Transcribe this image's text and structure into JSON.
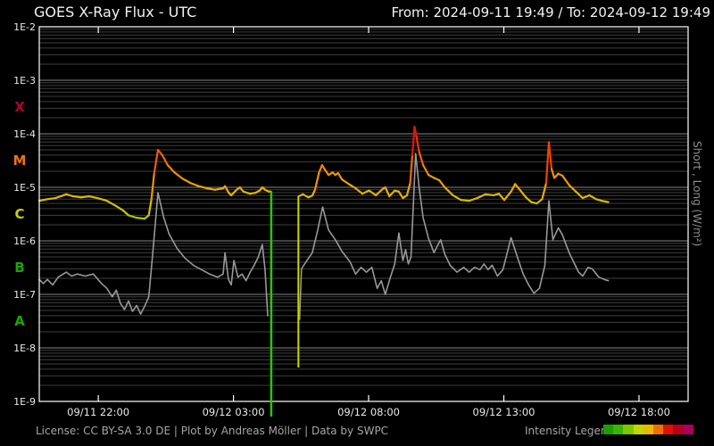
{
  "header": {
    "title": "GOES X-Ray Flux - UTC",
    "range_label": "From: 2024-09-11 19:49  /  To: 2024-09-12 19:49"
  },
  "footer": {
    "license": "License: CC BY-SA 3.0 DE | Plot by Andreas Möller | Data by SWPC",
    "legend_label": "Intensity Legend",
    "legend_colors": [
      "#1c9e00",
      "#39b500",
      "#7cc900",
      "#c4d600",
      "#edb800",
      "#ee7000",
      "#e01000",
      "#b4001e",
      "#a8005c"
    ]
  },
  "chart_data": {
    "type": "line",
    "title": "GOES X-Ray Flux - UTC",
    "time_range": {
      "from": "2024-09-11 19:49",
      "to": "2024-09-12 19:49",
      "timezone": "UTC"
    },
    "x_axis": {
      "unit": "hours after 2024-09-11 19:49 UTC",
      "range": [
        0,
        24
      ],
      "ticks": [
        {
          "label": "09/11 22:00",
          "t": 2.183
        },
        {
          "label": "09/12 03:00",
          "t": 7.183
        },
        {
          "label": "09/12 08:00",
          "t": 12.183
        },
        {
          "label": "09/12 13:00",
          "t": 17.183
        },
        {
          "label": "09/12 18:00",
          "t": 22.183
        }
      ]
    },
    "y_axis": {
      "scale": "log",
      "range": [
        1e-09,
        0.01
      ],
      "unit": "W/m²",
      "axis_label": "Short ,  Long (W/m²)",
      "ticks": [
        {
          "label": "1E-2",
          "exp": -2
        },
        {
          "label": "1E-3",
          "exp": -3
        },
        {
          "label": "1E-4",
          "exp": -4
        },
        {
          "label": "1E-5",
          "exp": -5
        },
        {
          "label": "1E-6",
          "exp": -6
        },
        {
          "label": "1E-7",
          "exp": -7
        },
        {
          "label": "1E-8",
          "exp": -8
        },
        {
          "label": "1E-9",
          "exp": -9
        }
      ],
      "flare_classes": [
        {
          "label": "X",
          "mid_exp": -3.5,
          "color": "#b2002d"
        },
        {
          "label": "M",
          "mid_exp": -4.5,
          "color": "#ee7500"
        },
        {
          "label": "C",
          "mid_exp": -5.5,
          "color": "#c9cf00"
        },
        {
          "label": "B",
          "mid_exp": -6.5,
          "color": "#1fa300"
        },
        {
          "label": "A",
          "mid_exp": -7.5,
          "color": "#1fa300"
        }
      ],
      "grid": {
        "major": true,
        "minor_log": true
      }
    },
    "series": [
      {
        "name": "Long",
        "render": "intensity-colormap",
        "width": 2.2,
        "segments": [
          [
            [
              0.0,
              5.6e-06
            ],
            [
              0.3,
              6e-06
            ],
            [
              0.6,
              6.3e-06
            ],
            [
              1.0,
              7.4e-06
            ],
            [
              1.25,
              6.8e-06
            ],
            [
              1.55,
              6.5e-06
            ],
            [
              1.85,
              6.8e-06
            ],
            [
              2.15,
              6.3e-06
            ],
            [
              2.5,
              5.6e-06
            ],
            [
              2.8,
              4.6e-06
            ],
            [
              3.1,
              3.7e-06
            ],
            [
              3.3,
              3e-06
            ],
            [
              3.6,
              2.7e-06
            ],
            [
              3.9,
              2.6e-06
            ],
            [
              4.05,
              3e-06
            ],
            [
              4.15,
              6e-06
            ],
            [
              4.25,
              1.8e-05
            ],
            [
              4.39,
              5e-05
            ],
            [
              4.55,
              4e-05
            ],
            [
              4.75,
              2.6e-05
            ],
            [
              5.0,
              1.9e-05
            ],
            [
              5.3,
              1.45e-05
            ],
            [
              5.6,
              1.2e-05
            ],
            [
              5.9,
              1.05e-05
            ],
            [
              6.2,
              9.6e-06
            ],
            [
              6.5,
              9e-06
            ],
            [
              6.8,
              9.6e-06
            ],
            [
              6.87,
              1.05e-05
            ],
            [
              7.0,
              8e-06
            ],
            [
              7.1,
              7.1e-06
            ],
            [
              7.3,
              9e-06
            ],
            [
              7.42,
              1e-05
            ],
            [
              7.55,
              8.3e-06
            ],
            [
              7.8,
              7.6e-06
            ],
            [
              8.0,
              7.9e-06
            ],
            [
              8.15,
              8.7e-06
            ],
            [
              8.25,
              1e-05
            ],
            [
              8.35,
              9e-06
            ],
            [
              8.5,
              8.3e-06
            ],
            [
              8.57,
              8.3e-06
            ]
          ],
          [
            [
              9.6,
              6.8e-06
            ],
            [
              9.75,
              7.4e-06
            ],
            [
              9.95,
              6.5e-06
            ],
            [
              10.1,
              7e-06
            ],
            [
              10.2,
              9e-06
            ],
            [
              10.35,
              1.9e-05
            ],
            [
              10.46,
              2.6e-05
            ],
            [
              10.55,
              2.2e-05
            ],
            [
              10.7,
              1.7e-05
            ],
            [
              10.85,
              1.9e-05
            ],
            [
              10.95,
              1.7e-05
            ],
            [
              11.05,
              1.85e-05
            ],
            [
              11.2,
              1.4e-05
            ],
            [
              11.45,
              1.15e-05
            ],
            [
              11.7,
              9.6e-06
            ],
            [
              11.95,
              7.6e-06
            ],
            [
              12.2,
              8.7e-06
            ],
            [
              12.45,
              7.1e-06
            ],
            [
              12.7,
              9.3e-06
            ],
            [
              12.8,
              1e-05
            ],
            [
              12.95,
              6.8e-06
            ],
            [
              13.15,
              8.7e-06
            ],
            [
              13.3,
              8.3e-06
            ],
            [
              13.45,
              6.3e-06
            ],
            [
              13.6,
              7.1e-06
            ],
            [
              13.72,
              1.2e-05
            ],
            [
              13.8,
              4e-05
            ],
            [
              13.88,
              0.000136
            ],
            [
              13.95,
              9e-05
            ],
            [
              14.05,
              4.6e-05
            ],
            [
              14.2,
              2.6e-05
            ],
            [
              14.4,
              1.7e-05
            ],
            [
              14.6,
              1.5e-05
            ],
            [
              14.8,
              1.35e-05
            ],
            [
              15.0,
              1e-05
            ],
            [
              15.3,
              7.1e-06
            ],
            [
              15.6,
              5.8e-06
            ],
            [
              15.9,
              5.6e-06
            ],
            [
              16.2,
              6.3e-06
            ],
            [
              16.5,
              7.4e-06
            ],
            [
              16.8,
              7.1e-06
            ],
            [
              17.0,
              7.6e-06
            ],
            [
              17.2,
              5.8e-06
            ],
            [
              17.45,
              8.3e-06
            ],
            [
              17.6,
              1.15e-05
            ],
            [
              17.8,
              8.7e-06
            ],
            [
              18.0,
              6.5e-06
            ],
            [
              18.2,
              5.3e-06
            ],
            [
              18.4,
              5e-06
            ],
            [
              18.6,
              6e-06
            ],
            [
              18.75,
              1.2e-05
            ],
            [
              18.85,
              7e-05
            ],
            [
              18.95,
              2.2e-05
            ],
            [
              19.05,
              1.5e-05
            ],
            [
              19.2,
              1.8e-05
            ],
            [
              19.35,
              1.65e-05
            ],
            [
              19.6,
              1.1e-05
            ],
            [
              19.85,
              8.3e-06
            ],
            [
              20.1,
              6.3e-06
            ],
            [
              20.35,
              7.1e-06
            ],
            [
              20.6,
              6e-06
            ],
            [
              20.8,
              5.6e-06
            ],
            [
              21.05,
              5.3e-06
            ]
          ]
        ]
      },
      {
        "name": "Short",
        "render": "solid",
        "color": "#989898",
        "width": 1.6,
        "segments": [
          [
            [
              0.0,
              1.9e-07
            ],
            [
              0.15,
              1.6e-07
            ],
            [
              0.3,
              1.9e-07
            ],
            [
              0.5,
              1.5e-07
            ],
            [
              0.7,
              2.1e-07
            ],
            [
              1.0,
              2.6e-07
            ],
            [
              1.2,
              2.2e-07
            ],
            [
              1.4,
              2.4e-07
            ],
            [
              1.7,
              2.2e-07
            ],
            [
              2.0,
              2.4e-07
            ],
            [
              2.3,
              1.6e-07
            ],
            [
              2.5,
              1.3e-07
            ],
            [
              2.7,
              9e-08
            ],
            [
              2.85,
              1.2e-07
            ],
            [
              3.0,
              6.8e-08
            ],
            [
              3.15,
              5.2e-08
            ],
            [
              3.3,
              7.5e-08
            ],
            [
              3.45,
              4.8e-08
            ],
            [
              3.6,
              6.2e-08
            ],
            [
              3.75,
              4.3e-08
            ],
            [
              3.9,
              6e-08
            ],
            [
              4.05,
              9e-08
            ],
            [
              4.2,
              6e-07
            ],
            [
              4.39,
              7.9e-06
            ],
            [
              4.6,
              2.8e-06
            ],
            [
              4.8,
              1.35e-06
            ],
            [
              5.1,
              7.2e-07
            ],
            [
              5.4,
              4.7e-07
            ],
            [
              5.7,
              3.5e-07
            ],
            [
              6.0,
              2.9e-07
            ],
            [
              6.3,
              2.4e-07
            ],
            [
              6.6,
              2.1e-07
            ],
            [
              6.8,
              2.4e-07
            ],
            [
              6.87,
              6e-07
            ],
            [
              7.0,
              1.9e-07
            ],
            [
              7.1,
              1.5e-07
            ],
            [
              7.2,
              4.3e-07
            ],
            [
              7.35,
              2.1e-07
            ],
            [
              7.5,
              2.4e-07
            ],
            [
              7.65,
              1.8e-07
            ],
            [
              7.8,
              2.6e-07
            ],
            [
              7.95,
              3.5e-07
            ],
            [
              8.1,
              5e-07
            ],
            [
              8.25,
              8.5e-07
            ],
            [
              8.35,
              3e-07
            ],
            [
              8.45,
              4e-08
            ]
          ],
          [
            [
              9.63,
              3.4e-08
            ],
            [
              9.7,
              3e-07
            ],
            [
              9.9,
              4.3e-07
            ],
            [
              10.1,
              6e-07
            ],
            [
              10.3,
              1.6e-06
            ],
            [
              10.48,
              4.3e-06
            ],
            [
              10.7,
              1.6e-06
            ],
            [
              10.95,
              1.05e-06
            ],
            [
              11.2,
              6.3e-07
            ],
            [
              11.5,
              4e-07
            ],
            [
              11.7,
              2.4e-07
            ],
            [
              11.9,
              3.2e-07
            ],
            [
              12.1,
              2.6e-07
            ],
            [
              12.3,
              3.2e-07
            ],
            [
              12.5,
              1.3e-07
            ],
            [
              12.65,
              1.8e-07
            ],
            [
              12.8,
              1e-07
            ],
            [
              13.0,
              2.2e-07
            ],
            [
              13.15,
              3.7e-07
            ],
            [
              13.3,
              1.4e-06
            ],
            [
              13.45,
              4.3e-07
            ],
            [
              13.55,
              6.8e-07
            ],
            [
              13.65,
              3.7e-07
            ],
            [
              13.75,
              5e-07
            ],
            [
              13.82,
              3e-06
            ],
            [
              13.92,
              4.3e-05
            ],
            [
              14.05,
              1e-05
            ],
            [
              14.2,
              2.7e-06
            ],
            [
              14.4,
              1.1e-06
            ],
            [
              14.6,
              6e-07
            ],
            [
              14.75,
              8.5e-07
            ],
            [
              14.85,
              1.05e-06
            ],
            [
              15.0,
              5.6e-07
            ],
            [
              15.2,
              3.5e-07
            ],
            [
              15.45,
              2.6e-07
            ],
            [
              15.7,
              3.2e-07
            ],
            [
              15.9,
              2.6e-07
            ],
            [
              16.1,
              3.2e-07
            ],
            [
              16.3,
              2.9e-07
            ],
            [
              16.45,
              3.7e-07
            ],
            [
              16.6,
              2.9e-07
            ],
            [
              16.75,
              3.5e-07
            ],
            [
              16.95,
              2.2e-07
            ],
            [
              17.15,
              2.9e-07
            ],
            [
              17.45,
              1.15e-06
            ],
            [
              17.7,
              4.7e-07
            ],
            [
              17.9,
              2.4e-07
            ],
            [
              18.1,
              1.5e-07
            ],
            [
              18.3,
              1.05e-07
            ],
            [
              18.5,
              1.3e-07
            ],
            [
              18.7,
              3.5e-07
            ],
            [
              18.85,
              5.6e-06
            ],
            [
              19.0,
              1.05e-06
            ],
            [
              19.2,
              1.75e-06
            ],
            [
              19.35,
              1.3e-06
            ],
            [
              19.6,
              6e-07
            ],
            [
              19.8,
              3.7e-07
            ],
            [
              19.95,
              2.6e-07
            ],
            [
              20.1,
              2.2e-07
            ],
            [
              20.3,
              3.2e-07
            ],
            [
              20.45,
              3e-07
            ],
            [
              20.7,
              2.1e-07
            ],
            [
              20.9,
              1.9e-07
            ],
            [
              21.05,
              1.8e-07
            ]
          ]
        ]
      }
    ],
    "data_gap": {
      "from_t": 8.58,
      "to_t": 9.6
    },
    "dropout_lines": [
      {
        "t": 8.58,
        "from_flux": 8.3e-06,
        "to_flux": 5.2e-10,
        "color": "#2fc400",
        "width": 2.5
      },
      {
        "t": 9.585,
        "from_flux": 6.8e-06,
        "to_flux": 4.3e-09,
        "color": "#ccd400",
        "width": 2.0
      }
    ],
    "intensity_colormap": [
      [
        -6.3,
        [
          40,
          160,
          0
        ]
      ],
      [
        -5.75,
        [
          140,
          195,
          0
        ]
      ],
      [
        -5.45,
        [
          190,
          200,
          0
        ]
      ],
      [
        -5.2,
        [
          216,
          188,
          0
        ]
      ],
      [
        -4.95,
        [
          235,
          168,
          0
        ]
      ],
      [
        -4.65,
        [
          244,
          140,
          0
        ]
      ],
      [
        -4.35,
        [
          242,
          100,
          0
        ]
      ],
      [
        -4.1,
        [
          235,
          58,
          4
        ]
      ],
      [
        -3.92,
        [
          228,
          24,
          12
        ]
      ],
      [
        -3.72,
        [
          213,
          6,
          28
        ]
      ]
    ]
  }
}
